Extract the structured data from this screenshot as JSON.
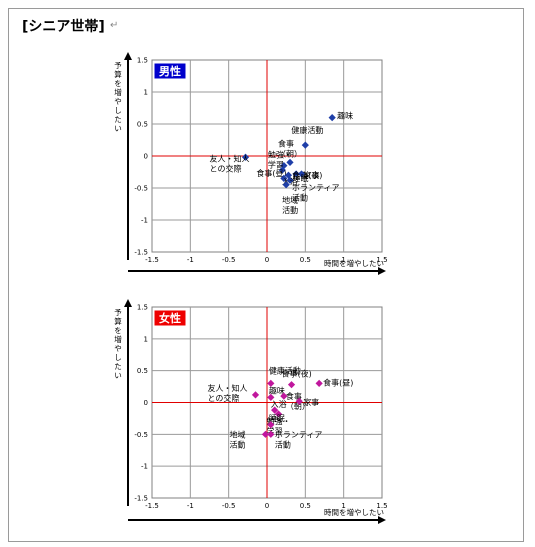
{
  "page": {
    "title": "[シニア世帯]",
    "return_mark": "↵"
  },
  "chart_data": [
    {
      "type": "scatter",
      "title": "男性",
      "badge_color": "#0000cc",
      "marker_color": "#1f3fa8",
      "marker": "diamond",
      "xlabel": "時間を増やしたい",
      "ylabel": "予算を増やしたい",
      "xlim": [
        -1.5,
        1.5
      ],
      "ylim": [
        -1.5,
        1.5
      ],
      "xticks": [
        "-1.5",
        "-1",
        "-0.5",
        "0",
        "0.5",
        "1",
        "1.5"
      ],
      "yticks": [
        "1.5",
        "1",
        "0.5",
        "0",
        "-0.5",
        "-1",
        "-1.5"
      ],
      "grid": true,
      "points": [
        {
          "label": "趣味",
          "x": 0.85,
          "y": 0.6
        },
        {
          "label": "健康活動",
          "x": 0.5,
          "y": 0.17
        },
        {
          "label": "食事(朝)",
          "x": 0.3,
          "y": -0.1
        },
        {
          "label": "勉強・学習",
          "x": 0.22,
          "y": -0.15
        },
        {
          "label": "友人・知人との交際",
          "x": -0.28,
          "y": -0.02
        },
        {
          "label": "食事(昼)",
          "x": 0.2,
          "y": -0.22
        },
        {
          "label": "食事(夜)",
          "x": 0.38,
          "y": -0.28
        },
        {
          "label": "家事",
          "x": 0.45,
          "y": -0.28
        },
        {
          "label": "睡眠",
          "x": 0.28,
          "y": -0.3
        },
        {
          "label": "ボランティア活動",
          "x": 0.3,
          "y": -0.38
        },
        {
          "label": "入浴",
          "x": 0.22,
          "y": -0.35
        },
        {
          "label": "地域活動",
          "x": 0.25,
          "y": -0.45
        }
      ]
    },
    {
      "type": "scatter",
      "title": "女性",
      "badge_color": "#ee0000",
      "marker_color": "#c0179d",
      "marker": "diamond",
      "xlabel": "時間を増やしたい",
      "ylabel": "予算を増やしたい",
      "xlim": [
        -1.5,
        1.5
      ],
      "ylim": [
        -1.5,
        1.5
      ],
      "xticks": [
        "-1.5",
        "-1",
        "-0.5",
        "0",
        "0.5",
        "1",
        "1.5"
      ],
      "yticks": [
        "1.5",
        "1",
        "0.5",
        "0",
        "-0.5",
        "-1",
        "-1.5"
      ],
      "grid": true,
      "points": [
        {
          "label": "健康活動",
          "x": 0.05,
          "y": 0.3
        },
        {
          "label": "食事(夜)",
          "x": 0.32,
          "y": 0.28
        },
        {
          "label": "食事(昼)",
          "x": 0.68,
          "y": 0.3
        },
        {
          "label": "趣味",
          "x": 0.05,
          "y": 0.08
        },
        {
          "label": "友人・知人との交際",
          "x": -0.15,
          "y": 0.12
        },
        {
          "label": "食事(朝)",
          "x": 0.22,
          "y": 0.1
        },
        {
          "label": "家事",
          "x": 0.42,
          "y": 0.02
        },
        {
          "label": "入浴",
          "x": 0.1,
          "y": -0.12
        },
        {
          "label": "勉強・学習",
          "x": 0.15,
          "y": -0.18
        },
        {
          "label": "睡眠",
          "x": 0.05,
          "y": -0.35
        },
        {
          "label": "地域活動",
          "x": -0.02,
          "y": -0.5
        },
        {
          "label": "ボランティア活動",
          "x": 0.05,
          "y": -0.5
        }
      ]
    }
  ]
}
